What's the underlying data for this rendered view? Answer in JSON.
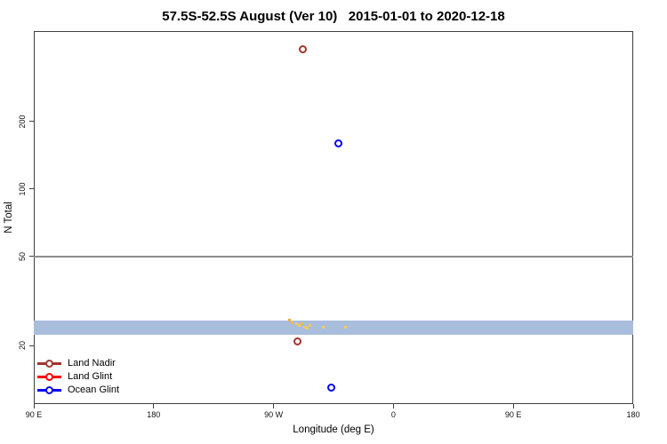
{
  "chart_data": {
    "type": "scatter",
    "title": "57.5S-52.5S August (Ver 10)   2015-01-01 to 2020-12-18",
    "xlabel": "Longitude (deg E)",
    "ylabel": "N Total",
    "x_axis": {
      "range": [
        90,
        540
      ],
      "ticks": [
        {
          "value": 90,
          "label": "90 E"
        },
        {
          "value": 180,
          "label": "180"
        },
        {
          "value": 270,
          "label": "90 W"
        },
        {
          "value": 360,
          "label": "0"
        },
        {
          "value": 450,
          "label": "90 E"
        },
        {
          "value": 540,
          "label": "180"
        }
      ]
    },
    "y_axis": {
      "scale": "log",
      "range": [
        11,
        506
      ],
      "ticks": [
        {
          "value": 20,
          "label": "20"
        },
        {
          "value": 50,
          "label": "50"
        },
        {
          "value": 100,
          "label": "100"
        },
        {
          "value": 200,
          "label": "200"
        }
      ]
    },
    "series": [
      {
        "name": "Land Nadir",
        "color": "#A5342C",
        "marker": "open-circle",
        "points": [
          {
            "lon": 292,
            "n": 420
          },
          {
            "lon": 288,
            "n": 21
          }
        ]
      },
      {
        "name": "Land Glint",
        "color": "#FF0000",
        "marker": "open-circle",
        "points": []
      },
      {
        "name": "Ocean Glint",
        "color": "#0505F0",
        "marker": "open-circle",
        "points": [
          {
            "lon": 319,
            "n": 160
          },
          {
            "lon": 313,
            "n": 13
          }
        ]
      }
    ],
    "band": {
      "description": "dense horizontal band of light-blue points across all longitudes",
      "color": "#A9BDDC",
      "lon_range": [
        90,
        540
      ],
      "n_range": [
        22.4,
        25.9
      ]
    },
    "reference_line": {
      "n": 50,
      "color": "#8C8C8C"
    },
    "extra_marks": {
      "description": "unlabeled yellow/orange point cluster",
      "points": [
        {
          "lon": 282,
          "n": 26.0,
          "color": "#EFA93E"
        },
        {
          "lon": 284,
          "n": 25.4,
          "color": "#F2B84B"
        },
        {
          "lon": 287,
          "n": 25.0,
          "color": "#F6CB5C"
        },
        {
          "lon": 289,
          "n": 24.6,
          "color": "#F6CB5C"
        },
        {
          "lon": 291,
          "n": 25.2,
          "color": "#F2B84B"
        },
        {
          "lon": 293,
          "n": 24.3,
          "color": "#F6CB5C"
        },
        {
          "lon": 295,
          "n": 23.9,
          "color": "#F6CB5C"
        },
        {
          "lon": 297,
          "n": 24.6,
          "color": "#F6CB5C"
        },
        {
          "lon": 307,
          "n": 24.2,
          "color": "#F6CB5C"
        },
        {
          "lon": 324,
          "n": 24.2,
          "color": "#F6CB5C"
        }
      ]
    }
  },
  "legend": {
    "items": [
      {
        "label": "Land Nadir",
        "color": "#A5342C"
      },
      {
        "label": "Land Glint",
        "color": "#FF0000"
      },
      {
        "label": "Ocean Glint",
        "color": "#0505F0"
      }
    ]
  }
}
